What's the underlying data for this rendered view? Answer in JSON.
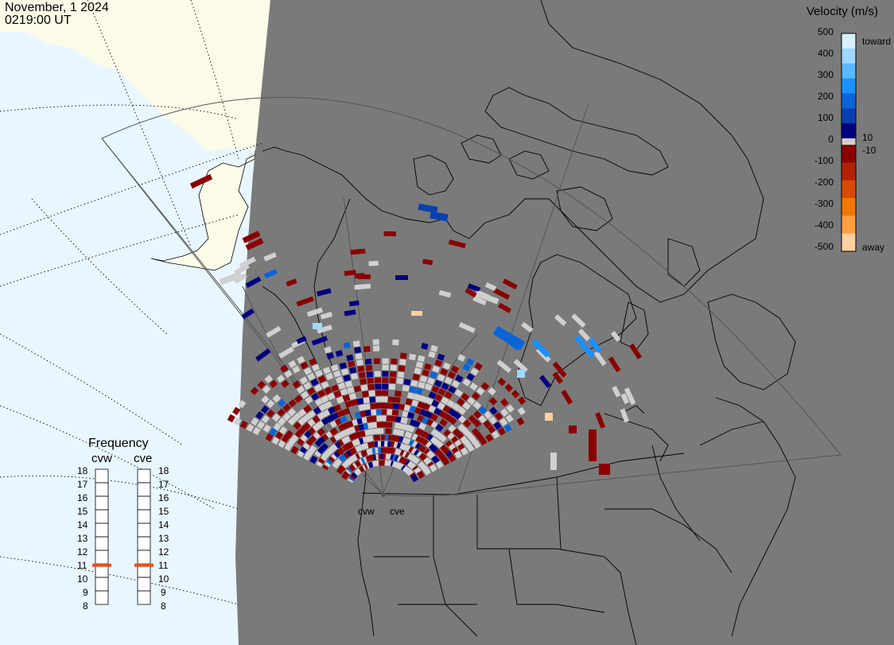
{
  "header": {
    "date": "November, 1 2024",
    "time": "0219:00 UT"
  },
  "velocity_scale": {
    "title": "Velocity (m/s)",
    "ticks": [
      "500",
      "400",
      "300",
      "200",
      "100",
      "0",
      "-100",
      "-200",
      "-300",
      "-400",
      "-500"
    ],
    "inner_ticks": [
      "10",
      "-10"
    ],
    "toward_label": "toward",
    "away_label": "away",
    "colors_toward": [
      "#d6f0ff",
      "#9fd8ff",
      "#5ab8ff",
      "#1a90ff",
      "#0a64d8",
      "#0a3fb0",
      "#000080"
    ],
    "colors_away": [
      "#8b0000",
      "#b32200",
      "#d84a00",
      "#f07800",
      "#ffa040",
      "#ffcfa0"
    ],
    "ground_scatter_color": "#d0d0d0"
  },
  "frequency_panel": {
    "title": "Frequency",
    "radars": [
      "cvw",
      "cve"
    ],
    "scale": [
      "18",
      "17",
      "16",
      "15",
      "14",
      "13",
      "12",
      "11",
      "10",
      "9",
      "8"
    ],
    "cvw_mhz": 10.9,
    "cve_mhz": 10.9,
    "marker_color": "#e8501e"
  },
  "map": {
    "land_color": "#7a7a7a",
    "outside_land_color": "#fbfbe8",
    "ocean_color": "#e8f6ff",
    "radar_labels": [
      "cvw",
      "cve"
    ]
  }
}
